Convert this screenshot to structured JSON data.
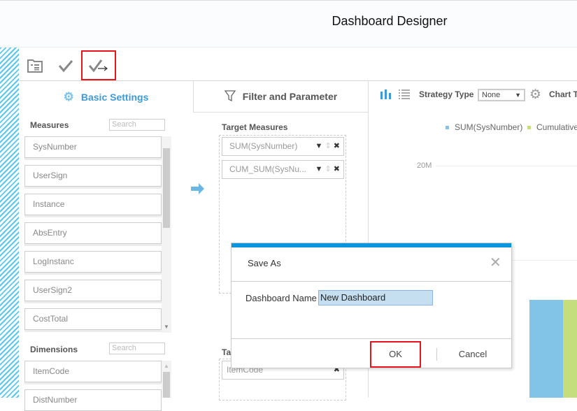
{
  "header": {
    "title": "Dashboard Designer"
  },
  "toolbar": {
    "icons": [
      "folder-list-icon",
      "check-icon",
      "check-arrow-icon"
    ]
  },
  "tabs": {
    "basic": "Basic Settings",
    "filter": "Filter and Parameter"
  },
  "measures": {
    "label": "Measures",
    "search_placeholder": "Search",
    "items": [
      "SysNumber",
      "UserSign",
      "Instance",
      "AbsEntry",
      "LogInstanc",
      "UserSign2",
      "CostTotal"
    ]
  },
  "dimensions": {
    "label": "Dimensions",
    "search_placeholder": "Search",
    "items": [
      "ItemCode",
      "DistNumber"
    ]
  },
  "target_measures": {
    "label": "Target Measures",
    "items": [
      "SUM(SysNumber)",
      "CUM_SUM(SysNu..."
    ]
  },
  "target_dimensions": {
    "label": "Ta",
    "items": [
      "ItemCode"
    ]
  },
  "chart_toolbar": {
    "strategy_label": "Strategy Type",
    "strategy_value": "None",
    "chart_type_label": "Chart T"
  },
  "chart": {
    "legend": [
      "SUM(SysNumber)",
      "Cumulative"
    ],
    "colors": [
      "#82c3e8",
      "#c4de7e"
    ],
    "y_tick": "20M"
  },
  "dialog": {
    "title": "Save As",
    "name_label": "Dashboard Name",
    "name_value": "New Dashboard",
    "ok": "OK",
    "cancel": "Cancel",
    "accent": "#0a96dc"
  }
}
